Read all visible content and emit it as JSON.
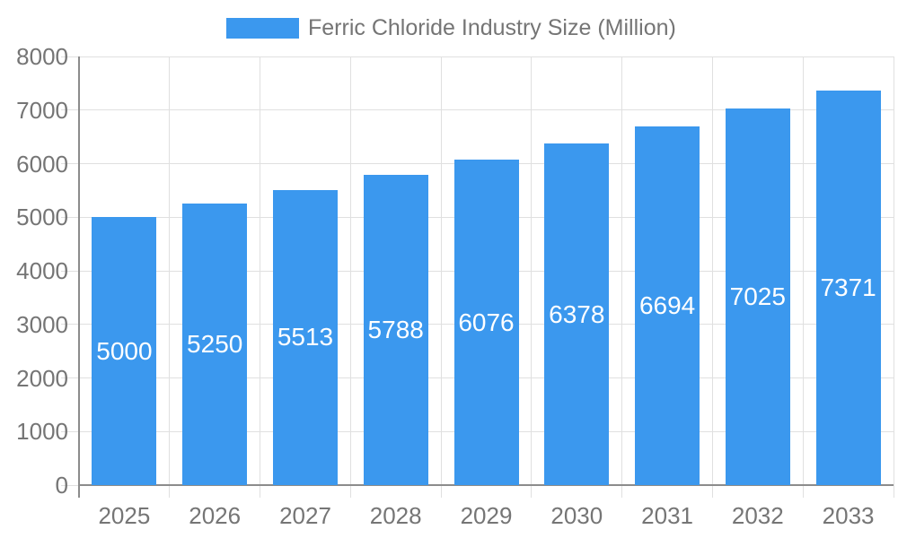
{
  "legend": {
    "label": "Ferric Chloride Industry Size (Million)"
  },
  "colors": {
    "bar": "#3B98EE",
    "grid": "#E0E0E0",
    "axis": "#8C8C8C",
    "text": "#757575",
    "value_text": "#FFFFFF"
  },
  "chart_data": {
    "type": "bar",
    "title": "Ferric Chloride Industry Size (Million)",
    "series": [
      {
        "name": "Ferric Chloride Industry Size (Million)",
        "values": [
          5000,
          5250,
          5513,
          5788,
          6076,
          6378,
          6694,
          7025,
          7371
        ]
      }
    ],
    "categories": [
      "2025",
      "2026",
      "2027",
      "2028",
      "2029",
      "2030",
      "2031",
      "2032",
      "2033"
    ],
    "values": [
      5000,
      5250,
      5513,
      5788,
      6076,
      6378,
      6694,
      7025,
      7371
    ],
    "value_labels": [
      "5000",
      "5250",
      "5513",
      "5788",
      "6076",
      "6378",
      "6694",
      "7025",
      "7371"
    ],
    "xlabel": "",
    "ylabel": "",
    "ylim": [
      0,
      8000
    ],
    "yticks": [
      0,
      1000,
      2000,
      3000,
      4000,
      5000,
      6000,
      7000,
      8000
    ],
    "grid": true,
    "legend_position": "top"
  }
}
